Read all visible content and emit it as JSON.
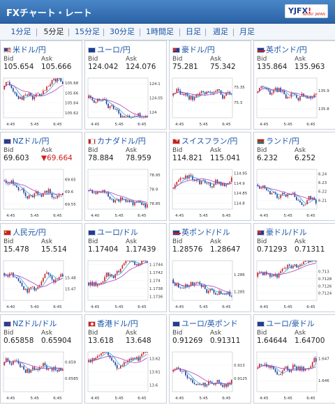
{
  "header": {
    "title": "FXチャート・レート",
    "logo_mark": "YJFX!",
    "logo_sub": "Yahoo! JAPAN"
  },
  "tabs": [
    {
      "label": "1分足"
    },
    {
      "label": "5分足"
    },
    {
      "label": "15分足"
    },
    {
      "label": "30分足"
    },
    {
      "label": "1時間足"
    },
    {
      "label": "日足"
    },
    {
      "label": "週足"
    },
    {
      "label": "月足"
    }
  ],
  "active_tab": 1,
  "colors": {
    "accent": "#2a62a6",
    "link": "#1a55a8",
    "candle_up": "#d0201b",
    "candle_down": "#1e3f9f",
    "ma1": "#2aa7d8",
    "ma2": "#b23fbd",
    "alert": "#d0201b"
  },
  "labels": {
    "bid": "Bid",
    "ask": "Ask"
  },
  "cards": [
    {
      "name": "米ドル/円",
      "flag": "us",
      "bid": "105.654",
      "ask": "105.666",
      "chart": {
        "yticks": [
          "105.68",
          "105.66",
          "105.64",
          "105.62"
        ],
        "xticks": [
          "4:45",
          "5:45",
          "6:45"
        ],
        "ymin": 105.61,
        "ymax": 105.69
      }
    },
    {
      "name": "ユーロ/円",
      "flag": "eu",
      "bid": "124.042",
      "ask": "124.076",
      "chart": {
        "yticks": [
          "124.1",
          "124.05",
          "124"
        ],
        "xticks": [
          "4:45",
          "5:45",
          "6:45"
        ],
        "ymin": 123.98,
        "ymax": 124.12
      }
    },
    {
      "name": "豪ドル/円",
      "flag": "au",
      "bid": "75.281",
      "ask": "75.342",
      "chart": {
        "yticks": [
          "75.35",
          "75.3"
        ],
        "xticks": [
          "4:45",
          "5:45",
          "6:45"
        ],
        "ymin": 75.25,
        "ymax": 75.38
      }
    },
    {
      "name": "英ポンド/円",
      "flag": "gb",
      "bid": "135.864",
      "ask": "135.963",
      "chart": {
        "yticks": [
          "135.9",
          "135.8"
        ],
        "xticks": [
          "4:45",
          "5:45",
          "6:45"
        ],
        "ymin": 135.75,
        "ymax": 135.97
      }
    },
    {
      "name": "NZドル/円",
      "flag": "nz",
      "bid": "69.603",
      "ask": "69.664",
      "ask_down": true,
      "ask_arrow": "▼",
      "chart": {
        "yticks": [
          "69.65",
          "69.6",
          "69.55"
        ],
        "xticks": [
          "4:45",
          "5:45",
          "6:45"
        ],
        "ymin": 69.53,
        "ymax": 69.69
      }
    },
    {
      "name": "カナダドル/円",
      "flag": "ca",
      "bid": "78.884",
      "ask": "78.959",
      "chart": {
        "yticks": [
          "78.95",
          "78.9",
          "78.85"
        ],
        "xticks": [
          "4:40",
          "5:45",
          "6:45"
        ],
        "ymin": 78.83,
        "ymax": 78.97
      }
    },
    {
      "name": "スイスフラン/円",
      "flag": "ch",
      "bid": "114.821",
      "ask": "115.041",
      "chart": {
        "yticks": [
          "114.95",
          "114.9",
          "114.85",
          "114.8"
        ],
        "xticks": [
          "4:45",
          "5:45",
          "6:45"
        ],
        "ymin": 114.77,
        "ymax": 114.97
      }
    },
    {
      "name": "ランド/円",
      "flag": "za",
      "bid": "6.232",
      "ask": "6.252",
      "chart": {
        "yticks": [
          "6.24",
          "6.23",
          "6.22",
          "6.21"
        ],
        "xticks": [
          "4:45",
          "5:45",
          "6:45"
        ],
        "ymin": 6.2,
        "ymax": 6.245
      }
    },
    {
      "name": "人民元/円",
      "flag": "cn",
      "bid": "15.478",
      "ask": "15.514",
      "chart": {
        "yticks": [
          "15.48",
          "15.47"
        ],
        "xticks": [
          "4:40",
          "5:40",
          "6:45"
        ],
        "ymin": 15.46,
        "ymax": 15.495
      }
    },
    {
      "name": "ユーロ/ドル",
      "flag": "eu",
      "bid": "1.17404",
      "ask": "1.17439",
      "chart": {
        "yticks": [
          "1.1744",
          "1.1742",
          "1.174",
          "1.1738",
          "1.1736"
        ],
        "xticks": [
          "4:45",
          "5:45",
          "6:45"
        ],
        "ymin": 1.1735,
        "ymax": 1.1745
      }
    },
    {
      "name": "英ポンド/ドル",
      "flag": "gb",
      "bid": "1.28576",
      "ask": "1.28647",
      "chart": {
        "yticks": [
          "1.286",
          "1.285"
        ],
        "xticks": [
          "4:45",
          "5:45",
          "6:45"
        ],
        "ymin": 1.2845,
        "ymax": 1.2868
      }
    },
    {
      "name": "豪ドル/ドル",
      "flag": "au",
      "bid": "0.71293",
      "ask": "0.71311",
      "chart": {
        "yticks": [
          "0.713",
          "0.7128",
          "0.7126",
          "0.7124"
        ],
        "xticks": [
          "4:45",
          "5:45",
          "6:45"
        ],
        "ymin": 0.7122,
        "ymax": 0.7133
      }
    },
    {
      "name": "NZドル/ドル",
      "flag": "nz",
      "bid": "0.65858",
      "ask": "0.65904",
      "chart": {
        "yticks": [
          "0.659",
          "0.6585"
        ],
        "xticks": [
          "4:45",
          "5:45",
          "6:45"
        ],
        "ymin": 0.6581,
        "ymax": 0.6593
      }
    },
    {
      "name": "香港ドル/円",
      "flag": "hk",
      "bid": "13.618",
      "ask": "13.648",
      "chart": {
        "yticks": [
          "13.62",
          "13.61",
          "13.6"
        ],
        "xticks": [
          "4:45",
          "5:45",
          "6:45"
        ],
        "ymin": 13.595,
        "ymax": 13.625
      }
    },
    {
      "name": "ユーロ/英ポンド",
      "flag": "eu",
      "bid": "0.91269",
      "ask": "0.91311",
      "chart": {
        "yticks": [
          "0.913",
          "0.9125"
        ],
        "xticks": [
          "4:45",
          "5:45",
          "6:45"
        ],
        "ymin": 0.912,
        "ymax": 0.9135
      }
    },
    {
      "name": "ユーロ/豪ドル",
      "flag": "eu",
      "bid": "1.64644",
      "ask": "1.64700",
      "chart": {
        "yticks": [
          "1.647",
          "1.646"
        ],
        "xticks": [
          "4:45",
          "5:45",
          "6:45"
        ],
        "ymin": 1.6455,
        "ymax": 1.6473
      }
    }
  ]
}
